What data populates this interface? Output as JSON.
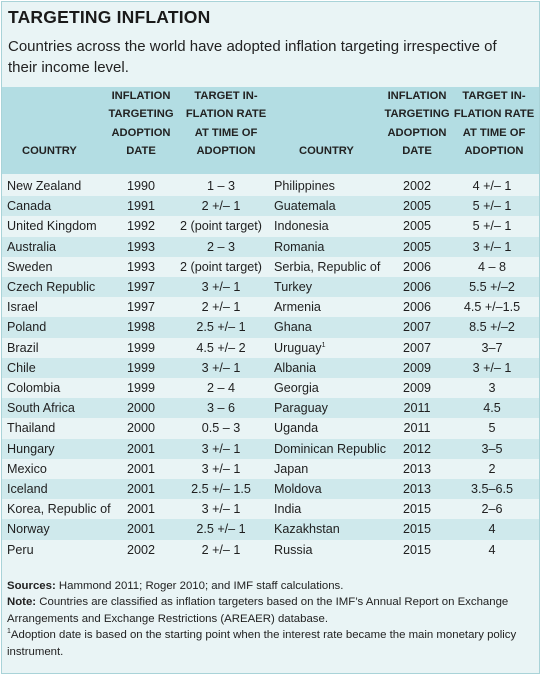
{
  "title": "TARGETING INFLATION",
  "subtitle": "Countries across the world have adopted inflation targeting irrespective of their income level.",
  "headers": {
    "country": "COUNTRY",
    "adoption": "INFLATION\nTARGETING\nADOPTION\nDATE",
    "target": "TARGET IN-\nFLATION RATE\nAT TIME OF\nADOPTION"
  },
  "rows": [
    [
      "New Zealand",
      "1990",
      "1 – 3",
      "Philippines",
      "2002",
      "4 +/– 1"
    ],
    [
      "Canada",
      "1991",
      "2 +/– 1",
      "Guatemala",
      "2005",
      "5 +/– 1"
    ],
    [
      "United Kingdom",
      "1992",
      "2 (point target)",
      "Indonesia",
      "2005",
      "5 +/– 1"
    ],
    [
      "Australia",
      "1993",
      "2 – 3",
      "Romania",
      "2005",
      "3 +/– 1"
    ],
    [
      "Sweden",
      "1993",
      "2 (point target)",
      "Serbia, Republic of",
      "2006",
      "4 – 8"
    ],
    [
      "Czech Republic",
      "1997",
      "3 +/– 1",
      "Turkey",
      "2006",
      "5.5 +/–2"
    ],
    [
      "Israel",
      "1997",
      "2 +/– 1",
      "Armenia",
      "2006",
      "4.5 +/–1.5"
    ],
    [
      "Poland",
      "1998",
      "2.5 +/– 1",
      "Ghana",
      "2007",
      "8.5 +/–2"
    ],
    [
      "Brazil",
      "1999",
      "4.5 +/– 2",
      "Uruguay",
      "2007",
      "3–7"
    ],
    [
      "Chile",
      "1999",
      "3 +/– 1",
      "Albania",
      "2009",
      "3 +/– 1"
    ],
    [
      "Colombia",
      "1999",
      "2 – 4",
      "Georgia",
      "2009",
      "3"
    ],
    [
      "South Africa",
      "2000",
      "3 – 6",
      "Paraguay",
      "2011",
      "4.5"
    ],
    [
      "Thailand",
      "2000",
      "0.5 – 3",
      "Uganda",
      "2011",
      "5"
    ],
    [
      "Hungary",
      "2001",
      "3 +/– 1",
      "Dominican Republic",
      "2012",
      "3–5"
    ],
    [
      "Mexico",
      "2001",
      "3 +/– 1",
      "Japan",
      "2013",
      "2"
    ],
    [
      "Iceland",
      "2001",
      "2.5 +/– 1.5",
      "Moldova",
      "2013",
      "3.5–6.5"
    ],
    [
      "Korea, Republic of",
      "2001",
      "3 +/– 1",
      "India",
      "2015",
      "2–6"
    ],
    [
      "Norway",
      "2001",
      "2.5 +/– 1",
      "Kazakhstan",
      "2015",
      "4"
    ],
    [
      "Peru",
      "2002",
      "2 +/– 1",
      "Russia",
      "2015",
      "4"
    ]
  ],
  "footnote_marks": {
    "uruguay": "1",
    "note": "1"
  },
  "notes": {
    "sources_label": "Sources:",
    "sources_text": " Hammond 2011; Roger 2010; and IMF staff calculations.",
    "note_label": "Note:",
    "note_text": " Countries are classified as inflation targeters based on the IMF’s Annual Report on Exchange Arrangements and Exchange Restrictions (AREAER) database.",
    "footnote_text": "Adoption date is based on the starting point when the interest rate became the main monetary policy instrument."
  }
}
